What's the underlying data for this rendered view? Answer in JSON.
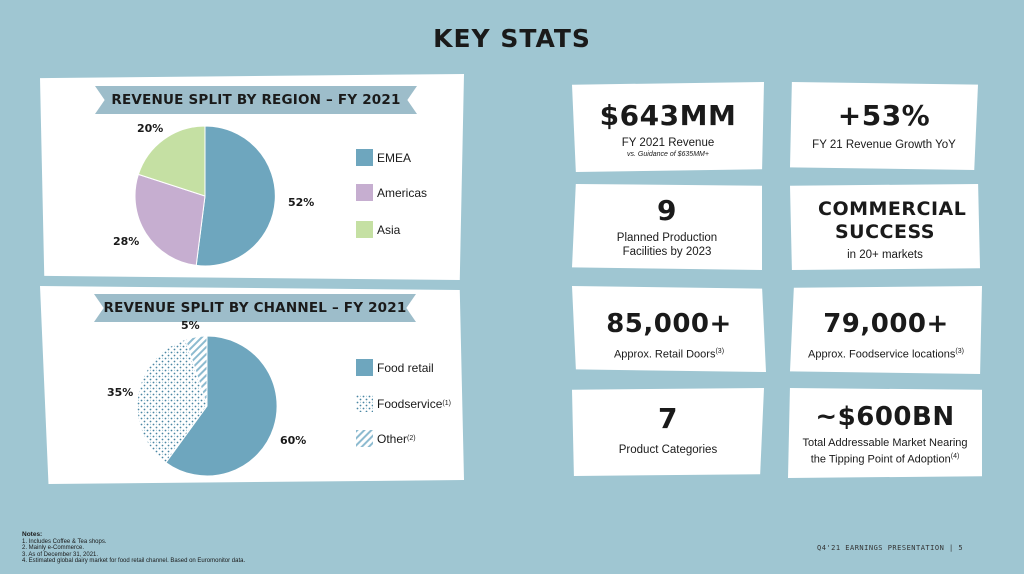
{
  "title": "KEY STATS",
  "region_chart": {
    "banner": "REVENUE SPLIT BY REGION – FY 2021",
    "labels": [
      "52%",
      "28%",
      "20%"
    ],
    "legend": [
      "EMEA",
      "Americas",
      "Asia"
    ]
  },
  "channel_chart": {
    "banner": "REVENUE SPLIT BY CHANNEL – FY 2021",
    "labels": [
      "60%",
      "35%",
      "5%"
    ],
    "legend": [
      "Food retail",
      "Foodservice",
      "Other"
    ],
    "legend_sup": [
      "",
      "(1)",
      "(2)"
    ]
  },
  "cards": [
    {
      "big": "$643MM",
      "sub": "FY 2021 Revenue",
      "tiny": "vs. Guidance of $635MM+"
    },
    {
      "big": "+53%",
      "sub": "FY 21 Revenue Growth YoY"
    },
    {
      "big": "9",
      "sub": "Planned Production Facilities by 2023"
    },
    {
      "big": "COMMERCIAL SUCCESS",
      "sub": "in 20+ markets"
    },
    {
      "big": "85,000+",
      "sub": "Approx. Retail Doors",
      "sup": "(3)"
    },
    {
      "big": "79,000+",
      "sub": "Approx. Foodservice locations",
      "sup": "(3)"
    },
    {
      "big": "7",
      "sub": "Product Categories"
    },
    {
      "big": "~$600BN",
      "sub": "Total Addressable Market Nearing the Tipping Point of Adoption",
      "sup": "(4)"
    }
  ],
  "notes": {
    "heading": "Notes:",
    "items": [
      "1.  Includes Coffee & Tea shops.",
      "2.  Mainly e-Commerce.",
      "3.  As of December 31, 2021.",
      "4.  Estimated global dairy market for food retail channel. Based on Euromonitor data."
    ]
  },
  "footer": "Q4'21 EARNINGS PRESENTATION  |  5",
  "colors": {
    "background": "#9fc6d2",
    "emea": "#6ea6be",
    "americas": "#c6aed0",
    "asia": "#c5e0a3",
    "banner": "#9dbdca"
  }
}
